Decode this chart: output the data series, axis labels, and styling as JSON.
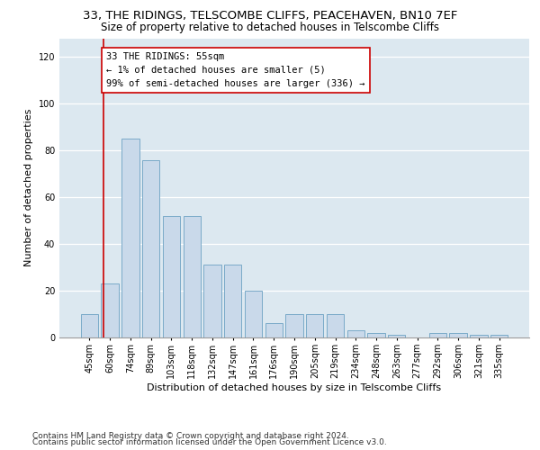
{
  "title1": "33, THE RIDINGS, TELSCOMBE CLIFFS, PEACEHAVEN, BN10 7EF",
  "title2": "Size of property relative to detached houses in Telscombe Cliffs",
  "xlabel": "Distribution of detached houses by size in Telscombe Cliffs",
  "ylabel": "Number of detached properties",
  "categories": [
    "45sqm",
    "60sqm",
    "74sqm",
    "89sqm",
    "103sqm",
    "118sqm",
    "132sqm",
    "147sqm",
    "161sqm",
    "176sqm",
    "190sqm",
    "205sqm",
    "219sqm",
    "234sqm",
    "248sqm",
    "263sqm",
    "277sqm",
    "292sqm",
    "306sqm",
    "321sqm",
    "335sqm"
  ],
  "values": [
    10,
    23,
    85,
    76,
    52,
    52,
    31,
    31,
    20,
    6,
    10,
    10,
    10,
    3,
    2,
    1,
    0,
    2,
    2,
    1,
    1
  ],
  "bar_color": "#c9d9ea",
  "bar_edge_color": "#7aaac8",
  "annotation_text": "33 THE RIDINGS: 55sqm\n← 1% of detached houses are smaller (5)\n99% of semi-detached houses are larger (336) →",
  "box_facecolor": "#ffffff",
  "box_edgecolor": "#cc0000",
  "marker_line_color": "#cc0000",
  "footer1": "Contains HM Land Registry data © Crown copyright and database right 2024.",
  "footer2": "Contains public sector information licensed under the Open Government Licence v3.0.",
  "ylim": [
    0,
    128
  ],
  "yticks": [
    0,
    20,
    40,
    60,
    80,
    100,
    120
  ],
  "background_color": "#dce8f0",
  "grid_color": "#ffffff",
  "title1_fontsize": 9.5,
  "title2_fontsize": 8.5,
  "tick_fontsize": 7,
  "ylabel_fontsize": 8,
  "xlabel_fontsize": 8,
  "ann_fontsize": 7.5,
  "footer_fontsize": 6.5
}
